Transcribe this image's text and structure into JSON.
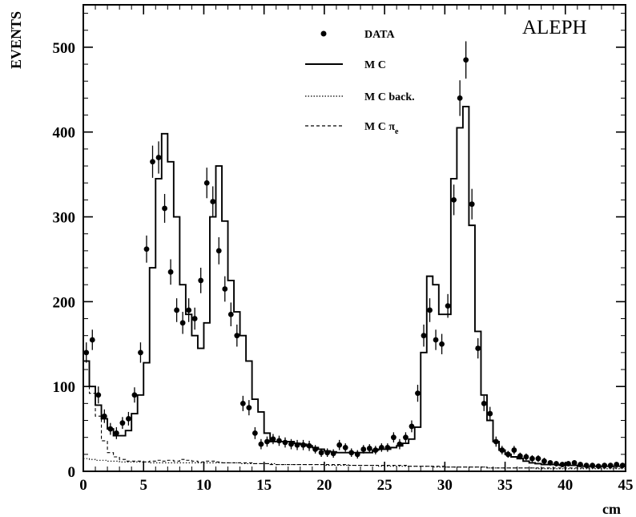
{
  "chart_data": {
    "type": "line",
    "experiment_label": "ALEPH",
    "xlabel": "cm",
    "ylabel": "EVENTS",
    "xlim": [
      0,
      45
    ],
    "ylim": [
      0,
      550
    ],
    "x_ticks": [
      0,
      5,
      10,
      15,
      20,
      25,
      30,
      35,
      40,
      45
    ],
    "y_ticks": [
      0,
      100,
      200,
      300,
      400,
      500
    ],
    "x_tick_labels": [
      "0",
      "5",
      "10",
      "15",
      "20",
      "25",
      "30",
      "35",
      "40",
      "45"
    ],
    "y_tick_labels": [
      "0",
      "100",
      "200",
      "300",
      "400",
      "500"
    ],
    "grid": false,
    "legend_position": "top-center",
    "legend": [
      {
        "label": "DATA",
        "style": "points"
      },
      {
        "label": "M C",
        "style": "solid"
      },
      {
        "label": "M C back.",
        "style": "dotted"
      },
      {
        "label": "M C π",
        "sub": "e",
        "style": "dashed"
      }
    ],
    "series": [
      {
        "name": "DATA",
        "style": "points",
        "x": [
          0.25,
          0.75,
          1.25,
          1.75,
          2.25,
          2.75,
          3.25,
          3.75,
          4.25,
          4.75,
          5.25,
          5.75,
          6.25,
          6.75,
          7.25,
          7.75,
          8.25,
          8.75,
          9.25,
          9.75,
          10.25,
          10.75,
          11.25,
          11.75,
          12.25,
          12.75,
          13.25,
          13.75,
          14.25,
          14.75,
          15.25,
          15.75,
          16.25,
          16.75,
          17.25,
          17.75,
          18.25,
          18.75,
          19.25,
          19.75,
          20.25,
          20.75,
          21.25,
          21.75,
          22.25,
          22.75,
          23.25,
          23.75,
          24.25,
          24.75,
          25.25,
          25.75,
          26.25,
          26.75,
          27.25,
          27.75,
          28.25,
          28.75,
          29.25,
          29.75,
          30.25,
          30.75,
          31.25,
          31.75,
          32.25,
          32.75,
          33.25,
          33.75,
          34.25,
          34.75,
          35.25,
          35.75,
          36.25,
          36.75,
          37.25,
          37.75,
          38.25,
          38.75,
          39.25,
          39.75,
          40.25,
          40.75,
          41.25,
          41.75,
          42.25,
          42.75,
          43.25,
          43.75,
          44.25,
          44.75
        ],
        "y": [
          140,
          155,
          90,
          65,
          50,
          45,
          57,
          62,
          90,
          140,
          262,
          365,
          370,
          310,
          235,
          190,
          175,
          190,
          180,
          225,
          340,
          318,
          260,
          215,
          185,
          160,
          80,
          75,
          45,
          32,
          35,
          38,
          36,
          34,
          32,
          31,
          31,
          30,
          26,
          22,
          22,
          21,
          31,
          28,
          22,
          20,
          26,
          27,
          25,
          28,
          28,
          40,
          32,
          40,
          53,
          92,
          160,
          190,
          155,
          150,
          195,
          320,
          440,
          485,
          315,
          145,
          80,
          68,
          35,
          25,
          20,
          25,
          18,
          17,
          15,
          15,
          12,
          10,
          9,
          8,
          9,
          10,
          8,
          7,
          7,
          6,
          7,
          7,
          8,
          7
        ],
        "err": [
          12,
          12,
          10,
          8,
          7,
          7,
          7,
          8,
          9,
          12,
          16,
          19,
          19,
          17,
          15,
          14,
          13,
          14,
          13,
          15,
          18,
          18,
          16,
          15,
          14,
          13,
          9,
          9,
          7,
          6,
          6,
          6,
          6,
          6,
          6,
          6,
          6,
          6,
          5,
          5,
          5,
          5,
          6,
          5,
          5,
          5,
          5,
          5,
          5,
          5,
          5,
          6,
          6,
          6,
          7,
          10,
          13,
          14,
          12,
          12,
          14,
          18,
          21,
          22,
          18,
          12,
          9,
          8,
          6,
          5,
          4,
          5,
          4,
          4,
          4,
          4,
          4,
          3,
          3,
          3,
          3,
          3,
          3,
          3,
          3,
          3,
          3,
          3,
          3,
          3
        ]
      },
      {
        "name": "M C",
        "style": "solid-step",
        "bin_width": 0.5,
        "bin_start": 0,
        "values": [
          130,
          100,
          78,
          62,
          50,
          42,
          42,
          48,
          68,
          90,
          128,
          240,
          345,
          398,
          365,
          300,
          220,
          185,
          160,
          145,
          175,
          300,
          360,
          295,
          225,
          188,
          160,
          130,
          85,
          70,
          45,
          35,
          35,
          35,
          35,
          33,
          32,
          30,
          28,
          26,
          24,
          23,
          22,
          22,
          22,
          22,
          22,
          22,
          25,
          26,
          26,
          28,
          30,
          33,
          38,
          52,
          140,
          230,
          220,
          185,
          185,
          345,
          405,
          430,
          290,
          165,
          90,
          60,
          35,
          25,
          20,
          17,
          15,
          12,
          10,
          9,
          8,
          8,
          8,
          7,
          7,
          7,
          6,
          6,
          6,
          6,
          6,
          6,
          6,
          6
        ]
      },
      {
        "name": "M C back.",
        "style": "dotted-step",
        "bin_width": 0.5,
        "bin_start": 0,
        "values": [
          15,
          14,
          13,
          13,
          12,
          12,
          11,
          11,
          11,
          11,
          11,
          10,
          10,
          10,
          10,
          10,
          10,
          10,
          10,
          10,
          10,
          10,
          10,
          10,
          10,
          10,
          9,
          9,
          9,
          9,
          9,
          9,
          8,
          8,
          8,
          8,
          8,
          8,
          8,
          8,
          7,
          7,
          7,
          7,
          7,
          7,
          7,
          7,
          7,
          6,
          6,
          6,
          6,
          6,
          6,
          6,
          6,
          6,
          5,
          5,
          5,
          5,
          5,
          5,
          5,
          5,
          5,
          4,
          4,
          4,
          4,
          4,
          4,
          4,
          4,
          3,
          3,
          3,
          3,
          3,
          3,
          3,
          3,
          3,
          3,
          3,
          3,
          3,
          3,
          3
        ]
      },
      {
        "name": "M C π_e",
        "style": "dashed-step",
        "bin_width": 0.5,
        "bin_start": 0,
        "values": [
          100,
          92,
          65,
          36,
          22,
          17,
          14,
          12,
          12,
          12,
          11,
          12,
          13,
          12,
          13,
          12,
          14,
          13,
          12,
          11,
          12,
          12,
          11,
          10,
          10,
          10,
          10,
          10,
          9,
          9,
          9,
          8,
          8,
          8,
          8,
          8,
          8,
          8,
          8,
          8,
          8,
          8,
          8,
          8,
          7,
          7,
          7,
          7,
          7,
          7,
          7,
          7,
          7,
          7,
          6,
          6,
          6,
          6,
          6,
          6,
          5,
          5,
          5,
          5,
          5,
          5,
          5,
          4,
          4,
          4,
          4,
          4,
          4,
          4,
          4,
          4,
          4,
          4,
          4,
          4,
          4,
          4,
          4,
          4,
          4,
          4,
          4,
          4,
          4,
          4
        ]
      }
    ]
  }
}
